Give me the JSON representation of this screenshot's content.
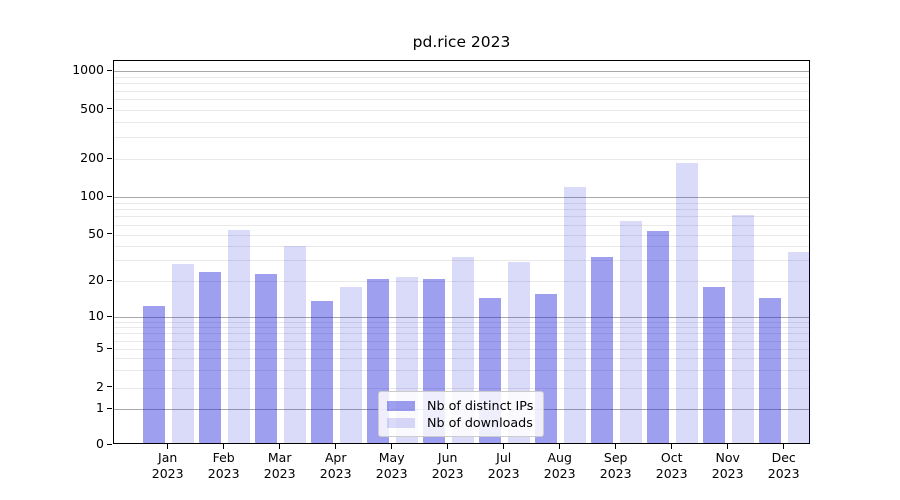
{
  "title": "pd.rice 2023",
  "chart_data": {
    "type": "bar",
    "title": "pd.rice 2023",
    "categories": [
      "Jan 2023",
      "Feb 2023",
      "Mar 2023",
      "Apr 2023",
      "May 2023",
      "Jun 2023",
      "Jul 2023",
      "Aug 2023",
      "Sep 2023",
      "Oct 2023",
      "Nov 2023",
      "Dec 2023"
    ],
    "series": [
      {
        "name": "Nb of distinct IPs",
        "color": "rgba(26,26,217,0.42)",
        "values": [
          12,
          23,
          22,
          13,
          20,
          20,
          14,
          15,
          31,
          51,
          17,
          14
        ]
      },
      {
        "name": "Nb of downloads",
        "color": "rgba(26,26,217,0.16)",
        "values": [
          27,
          52,
          38,
          17,
          21,
          31,
          28,
          115,
          62,
          180,
          69,
          34
        ]
      }
    ],
    "xlabel": "",
    "ylabel": "",
    "y_scale": "symlog",
    "y_ticks": [
      0,
      1,
      2,
      5,
      10,
      20,
      50,
      100,
      200,
      500,
      1000
    ],
    "major_gridlines": [
      1,
      10,
      100,
      1000
    ],
    "minor_gridlines": [
      2,
      3,
      4,
      5,
      6,
      7,
      8,
      9,
      20,
      30,
      40,
      50,
      60,
      70,
      80,
      90,
      200,
      300,
      400,
      500,
      600,
      700,
      800,
      900
    ],
    "ylim": [
      0,
      1400
    ],
    "grid": true,
    "legend_position": "lower center"
  },
  "colors": {
    "bar_ips_on_white": "#a3a3ef",
    "bar_downloads_on_white": "#dadaf9",
    "grid_major": "#a9a9a9",
    "grid_minor": "#e9e9e9",
    "axis": "#000000",
    "legend_border": "#cccccc"
  }
}
